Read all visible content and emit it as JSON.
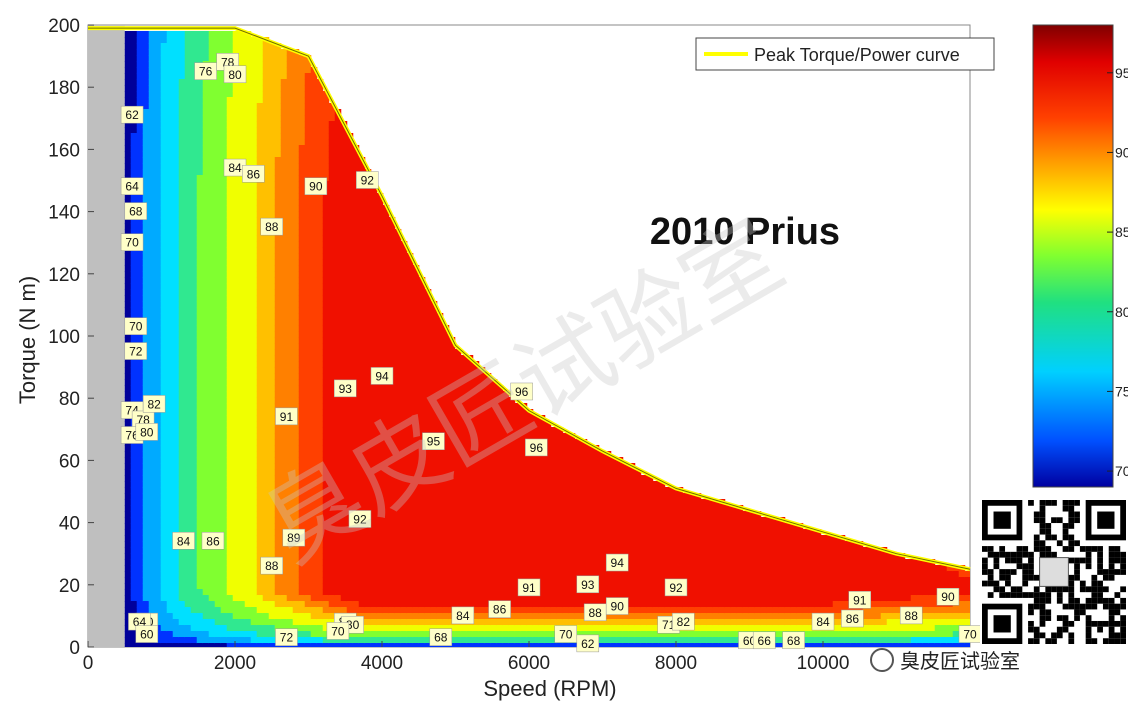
{
  "chart_data": {
    "type": "contour",
    "title": "2010 Prius",
    "xlabel": "Speed (RPM)",
    "ylabel": "Torque (N m)",
    "xlim": [
      0,
      12000
    ],
    "ylim": [
      0,
      200
    ],
    "xticks": [
      0,
      2000,
      4000,
      6000,
      8000,
      10000
    ],
    "yticks": [
      0,
      20,
      40,
      60,
      80,
      100,
      120,
      140,
      160,
      180,
      200
    ],
    "legend": {
      "label": "Peak Torque/Power curve",
      "color": "#ffff00",
      "placement": "top-right"
    },
    "peak_curve": [
      {
        "x": 0,
        "y": 199
      },
      {
        "x": 2000,
        "y": 199
      },
      {
        "x": 3000,
        "y": 190
      },
      {
        "x": 4000,
        "y": 145
      },
      {
        "x": 5000,
        "y": 97
      },
      {
        "x": 6000,
        "y": 76
      },
      {
        "x": 7000,
        "y": 63
      },
      {
        "x": 8000,
        "y": 51
      },
      {
        "x": 9000,
        "y": 44
      },
      {
        "x": 10000,
        "y": 37
      },
      {
        "x": 11000,
        "y": 30
      },
      {
        "x": 12000,
        "y": 25
      }
    ],
    "contour_labels": [
      {
        "x": 1600,
        "y": 185,
        "value": "76"
      },
      {
        "x": 1900,
        "y": 188,
        "value": "78"
      },
      {
        "x": 2000,
        "y": 184,
        "value": "80"
      },
      {
        "x": 600,
        "y": 171,
        "value": "62"
      },
      {
        "x": 600,
        "y": 148,
        "value": "64"
      },
      {
        "x": 650,
        "y": 140,
        "value": "68"
      },
      {
        "x": 600,
        "y": 130,
        "value": "70"
      },
      {
        "x": 650,
        "y": 103,
        "value": "70"
      },
      {
        "x": 650,
        "y": 95,
        "value": "72"
      },
      {
        "x": 2000,
        "y": 154,
        "value": "84"
      },
      {
        "x": 2250,
        "y": 152,
        "value": "86"
      },
      {
        "x": 2500,
        "y": 135,
        "value": "88"
      },
      {
        "x": 3100,
        "y": 148,
        "value": "90"
      },
      {
        "x": 3800,
        "y": 150,
        "value": "92"
      },
      {
        "x": 2700,
        "y": 74,
        "value": "91"
      },
      {
        "x": 3500,
        "y": 83,
        "value": "93"
      },
      {
        "x": 4000,
        "y": 87,
        "value": "94"
      },
      {
        "x": 4700,
        "y": 66,
        "value": "95"
      },
      {
        "x": 5900,
        "y": 82,
        "value": "96"
      },
      {
        "x": 6100,
        "y": 64,
        "value": "96"
      },
      {
        "x": 600,
        "y": 76,
        "value": "74"
      },
      {
        "x": 750,
        "y": 73,
        "value": "78"
      },
      {
        "x": 900,
        "y": 78,
        "value": "82"
      },
      {
        "x": 600,
        "y": 68,
        "value": "76"
      },
      {
        "x": 800,
        "y": 69,
        "value": "80"
      },
      {
        "x": 1300,
        "y": 34,
        "value": "84"
      },
      {
        "x": 1700,
        "y": 34,
        "value": "86"
      },
      {
        "x": 2800,
        "y": 35,
        "value": "89"
      },
      {
        "x": 3700,
        "y": 41,
        "value": "92"
      },
      {
        "x": 2500,
        "y": 26,
        "value": "88"
      },
      {
        "x": 7200,
        "y": 27,
        "value": "94"
      },
      {
        "x": 6000,
        "y": 19,
        "value": "91"
      },
      {
        "x": 6800,
        "y": 20,
        "value": "93"
      },
      {
        "x": 8000,
        "y": 19,
        "value": "92"
      },
      {
        "x": 10500,
        "y": 15,
        "value": "91"
      },
      {
        "x": 11700,
        "y": 16,
        "value": "90"
      },
      {
        "x": 5600,
        "y": 12,
        "value": "86"
      },
      {
        "x": 5100,
        "y": 10,
        "value": "84"
      },
      {
        "x": 6900,
        "y": 11,
        "value": "88"
      },
      {
        "x": 7200,
        "y": 13,
        "value": "90"
      },
      {
        "x": 11200,
        "y": 10,
        "value": "88"
      },
      {
        "x": 10400,
        "y": 9,
        "value": "86"
      },
      {
        "x": 10000,
        "y": 8,
        "value": "84"
      },
      {
        "x": 3500,
        "y": 8,
        "value": "82"
      },
      {
        "x": 3600,
        "y": 7,
        "value": "80"
      },
      {
        "x": 3400,
        "y": 5,
        "value": "70"
      },
      {
        "x": 2700,
        "y": 3,
        "value": "72"
      },
      {
        "x": 4800,
        "y": 3,
        "value": "68"
      },
      {
        "x": 6500,
        "y": 4,
        "value": "70"
      },
      {
        "x": 6800,
        "y": 1,
        "value": "62"
      },
      {
        "x": 7900,
        "y": 7,
        "value": "71"
      },
      {
        "x": 8100,
        "y": 8,
        "value": "82"
      },
      {
        "x": 9000,
        "y": 2,
        "value": "60"
      },
      {
        "x": 9200,
        "y": 2,
        "value": "66"
      },
      {
        "x": 9600,
        "y": 2,
        "value": "68"
      },
      {
        "x": 800,
        "y": 8,
        "value": "70"
      },
      {
        "x": 700,
        "y": 8,
        "value": "64"
      },
      {
        "x": 800,
        "y": 4,
        "value": "60"
      },
      {
        "x": 12000,
        "y": 4,
        "value": "70"
      }
    ],
    "colorbar": {
      "ticks": [
        {
          "value": 70,
          "label": "70"
        },
        {
          "value": 75,
          "label": "75"
        },
        {
          "value": 80,
          "label": "80"
        },
        {
          "value": 85,
          "label": "85"
        },
        {
          "value": 90,
          "label": "90"
        },
        {
          "value": 95,
          "label": "95"
        }
      ],
      "range": [
        69,
        98
      ]
    }
  },
  "watermark": {
    "main": "臭皮匠试验室",
    "account": "臭皮匠试验室"
  }
}
